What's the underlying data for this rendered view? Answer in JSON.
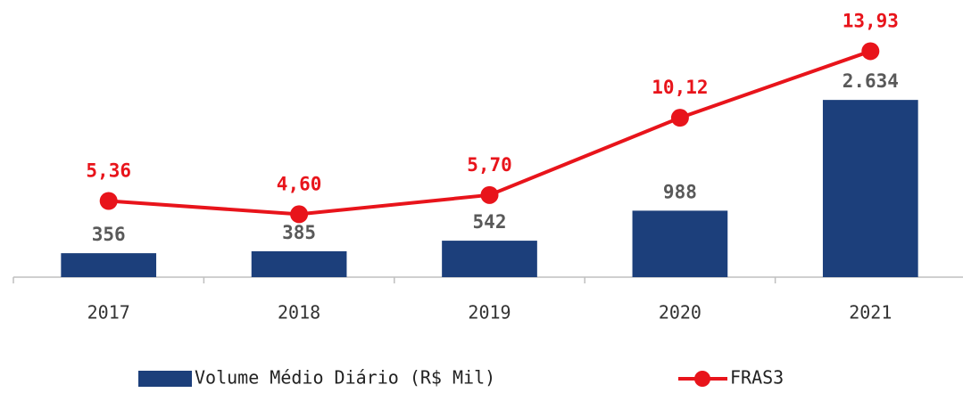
{
  "chart_data": {
    "type": "bar",
    "categories": [
      "2017",
      "2018",
      "2019",
      "2020",
      "2021"
    ],
    "ylim": [
      0,
      4000
    ],
    "y2lim": [
      1,
      16.4
    ],
    "legend": "bottom",
    "series": [
      {
        "name": "Volume Médio Diário (R$ Mil)",
        "type": "bar",
        "color": "#1c3f7b",
        "values": [
          356,
          385,
          542,
          988,
          2634
        ],
        "value_labels": [
          "356",
          "385",
          "542",
          "988",
          "2.634"
        ]
      },
      {
        "name": "FRAS3",
        "type": "line",
        "axis": "y2",
        "color": "#e8141b",
        "values": [
          5.36,
          4.6,
          5.7,
          10.12,
          13.93
        ],
        "value_labels": [
          "5,36",
          "4,60",
          "5,70",
          "10,12",
          "13,93"
        ]
      }
    ]
  }
}
